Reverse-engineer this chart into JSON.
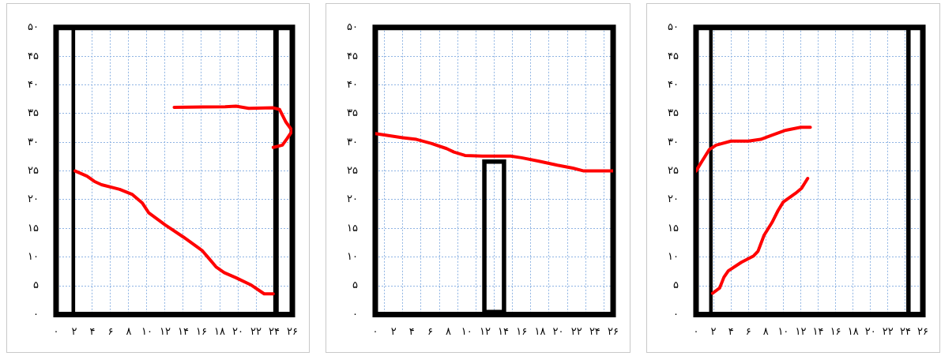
{
  "chart_data": [
    {
      "type": "line",
      "xlim": [
        0,
        26
      ],
      "ylim": [
        0,
        50
      ],
      "grid": true,
      "legend": false,
      "marker": "none",
      "xticks": [
        {
          "value": 0,
          "label": "۰"
        },
        {
          "value": 2,
          "label": "۲"
        },
        {
          "value": 4,
          "label": "۴"
        },
        {
          "value": 6,
          "label": "۶"
        },
        {
          "value": 8,
          "label": "۸"
        },
        {
          "value": 10,
          "label": "۱۰"
        },
        {
          "value": 12,
          "label": "۱۲"
        },
        {
          "value": 14,
          "label": "۱۴"
        },
        {
          "value": 16,
          "label": "۱۶"
        },
        {
          "value": 18,
          "label": "۱۸"
        },
        {
          "value": 20,
          "label": "۲۰"
        },
        {
          "value": 22,
          "label": "۲۲"
        },
        {
          "value": 24,
          "label": "۲۴"
        },
        {
          "value": 26,
          "label": "۲۶"
        }
      ],
      "yticks": [
        {
          "value": 0,
          "label": "۰"
        },
        {
          "value": 5,
          "label": "۵"
        },
        {
          "value": 10,
          "label": "۱۰"
        },
        {
          "value": 15,
          "label": "۱۵"
        },
        {
          "value": 20,
          "label": "۲۰"
        },
        {
          "value": 25,
          "label": "۲۵"
        },
        {
          "value": 30,
          "label": "۳۰"
        },
        {
          "value": 35,
          "label": "۳۵"
        },
        {
          "value": 40,
          "label": "۴۰"
        },
        {
          "value": 45,
          "label": "۴۵"
        },
        {
          "value": 50,
          "label": "۵۰"
        }
      ],
      "series": [
        {
          "color": "#ff0000",
          "x": [
            2.1,
            3.4,
            4.2,
            5,
            7,
            8.4,
            9.5,
            10.2,
            12,
            14,
            16.1,
            16.8,
            17.6,
            18.5,
            19.8,
            21.5,
            22.9,
            23.9
          ],
          "values": [
            25,
            24.1,
            23.2,
            22.6,
            21.8,
            20.9,
            19.4,
            17.7,
            15.6,
            13.5,
            11.1,
            9.8,
            8.3,
            7.3,
            6.4,
            5.1,
            3.6,
            3.6
          ]
        },
        {
          "color": "#ff0000",
          "x": [
            13,
            18.6,
            19.8,
            21.2,
            23.9,
            24.6,
            25.3,
            26,
            25.4,
            24.9,
            23.9
          ],
          "values": [
            36.1,
            36.2,
            36.3,
            35.9,
            36,
            35.7,
            33.5,
            32,
            30.6,
            29.5,
            29.1
          ]
        }
      ],
      "bands": [
        {
          "axis": "x",
          "from": 1.7,
          "to": 2.1,
          "color": "#000000"
        },
        {
          "axis": "x",
          "from": 23.9,
          "to": 24.5,
          "color": "#000000"
        }
      ]
    },
    {
      "type": "bar",
      "xlim": [
        0,
        26
      ],
      "ylim": [
        0,
        50
      ],
      "grid": true,
      "legend": false,
      "marker": "none",
      "xticks": [
        {
          "value": 0,
          "label": "۰"
        },
        {
          "value": 2,
          "label": "۲"
        },
        {
          "value": 4,
          "label": "۴"
        },
        {
          "value": 6,
          "label": "۶"
        },
        {
          "value": 8,
          "label": "۸"
        },
        {
          "value": 10,
          "label": "۱۰"
        },
        {
          "value": 12,
          "label": "۱۲"
        },
        {
          "value": 14,
          "label": "۱۴"
        },
        {
          "value": 16,
          "label": "۱۶"
        },
        {
          "value": 18,
          "label": "۱۸"
        },
        {
          "value": 20,
          "label": "۲۰"
        },
        {
          "value": 22,
          "label": "۲۲"
        },
        {
          "value": 24,
          "label": "۲۴"
        },
        {
          "value": 26,
          "label": "۲۶"
        }
      ],
      "yticks": [
        {
          "value": 0,
          "label": "۰"
        },
        {
          "value": 5,
          "label": "۵"
        },
        {
          "value": 10,
          "label": "۱۰"
        },
        {
          "value": 15,
          "label": "۱۵"
        },
        {
          "value": 20,
          "label": "۲۰"
        },
        {
          "value": 25,
          "label": "۲۵"
        },
        {
          "value": 30,
          "label": "۳۰"
        },
        {
          "value": 35,
          "label": "۳۵"
        },
        {
          "value": 40,
          "label": "۴۰"
        },
        {
          "value": 45,
          "label": "۴۵"
        },
        {
          "value": 50,
          "label": "۵۰"
        }
      ],
      "series": [
        {
          "color": "#000000",
          "x": [
            13
          ],
          "values": [
            27
          ]
        },
        {
          "type": "line",
          "color": "#ff0000",
          "x": [
            0,
            1.3,
            3,
            4.5,
            6.1,
            7.8,
            8.6,
            9.8,
            11.7,
            14.8,
            16,
            17.9,
            19.9,
            21.6,
            22.8,
            26
          ],
          "values": [
            31.5,
            31.2,
            30.8,
            30.5,
            29.8,
            28.9,
            28.3,
            27.7,
            27.6,
            27.6,
            27.3,
            26.7,
            26,
            25.5,
            25,
            25
          ]
        }
      ]
    },
    {
      "type": "line",
      "xlim": [
        0,
        26
      ],
      "ylim": [
        0,
        50
      ],
      "grid": true,
      "legend": false,
      "marker": "none",
      "xticks": [
        {
          "value": 0,
          "label": "۰"
        },
        {
          "value": 2,
          "label": "۲"
        },
        {
          "value": 4,
          "label": "۴"
        },
        {
          "value": 6,
          "label": "۶"
        },
        {
          "value": 8,
          "label": "۸"
        },
        {
          "value": 10,
          "label": "۱۰"
        },
        {
          "value": 12,
          "label": "۱۲"
        },
        {
          "value": 14,
          "label": "۱۴"
        },
        {
          "value": 16,
          "label": "۱۶"
        },
        {
          "value": 18,
          "label": "۱۸"
        },
        {
          "value": 20,
          "label": "۲۰"
        },
        {
          "value": 22,
          "label": "۲۲"
        },
        {
          "value": 24,
          "label": "۲۴"
        },
        {
          "value": 26,
          "label": "۲۶"
        }
      ],
      "yticks": [
        {
          "value": 0,
          "label": "۰"
        },
        {
          "value": 5,
          "label": "۵"
        },
        {
          "value": 10,
          "label": "۱۰"
        },
        {
          "value": 15,
          "label": "۱۵"
        },
        {
          "value": 20,
          "label": "۲۰"
        },
        {
          "value": 25,
          "label": "۲۵"
        },
        {
          "value": 30,
          "label": "۳۰"
        },
        {
          "value": 35,
          "label": "۳۵"
        },
        {
          "value": 40,
          "label": "۴۰"
        },
        {
          "value": 45,
          "label": "۴۵"
        },
        {
          "value": 50,
          "label": "۵۰"
        }
      ],
      "series": [
        {
          "color": "#ff0000",
          "x": [
            0,
            0.6,
            1.5,
            2.3,
            4,
            6,
            7.4,
            8.8,
            10.3,
            12,
            13.1
          ],
          "values": [
            25,
            26.5,
            28.7,
            29.5,
            30.2,
            30.2,
            30.5,
            31.3,
            32.1,
            32.6,
            32.6
          ]
        },
        {
          "color": "#ff0000",
          "x": [
            1.9,
            2.7,
            3.2,
            3.7,
            5.2,
            6.6,
            7.1,
            7.8,
            8.7,
            9.4,
            10,
            11.4,
            12.1,
            12.8
          ],
          "values": [
            3.7,
            4.6,
            6.5,
            7.6,
            9.1,
            10.2,
            11,
            13.8,
            16,
            18.1,
            19.6,
            21.1,
            22,
            23.7
          ]
        }
      ],
      "bands": [
        {
          "axis": "x",
          "from": 1.5,
          "to": 1.9,
          "color": "#000000"
        },
        {
          "axis": "x",
          "from": 24.1,
          "to": 24.6,
          "color": "#000000"
        }
      ]
    }
  ]
}
